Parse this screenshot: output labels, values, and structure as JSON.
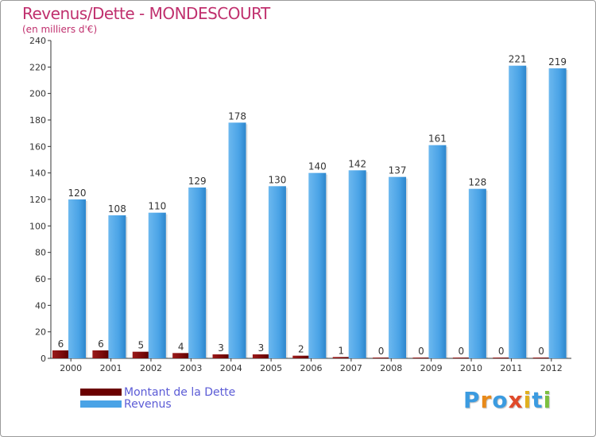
{
  "title": "Revenus/Dette - MONDESCOURT",
  "subtitle": "(en milliers d'€)",
  "chart_data": {
    "type": "bar",
    "categories": [
      "2000",
      "2001",
      "2002",
      "2003",
      "2004",
      "2005",
      "2006",
      "2007",
      "2008",
      "2009",
      "2010",
      "2011",
      "2012"
    ],
    "series": [
      {
        "name": "Montant de la Dette",
        "values": [
          6,
          6,
          5,
          4,
          3,
          3,
          2,
          1,
          0,
          0,
          0,
          0,
          0
        ],
        "color": "#7a0a0a"
      },
      {
        "name": "Revenus",
        "values": [
          120,
          108,
          110,
          129,
          178,
          130,
          140,
          142,
          137,
          161,
          128,
          221,
          219
        ],
        "color": "#4aa3e6"
      }
    ],
    "ylim": [
      0,
      240
    ],
    "yticks": [
      0,
      20,
      40,
      60,
      80,
      100,
      120,
      140,
      160,
      180,
      200,
      220,
      240
    ],
    "xlabel": "",
    "ylabel": "",
    "grid": false,
    "legend": "bottom-left"
  },
  "legend": [
    {
      "label": "Montant de la Dette",
      "color": "#6b0000"
    },
    {
      "label": "Revenus",
      "color": "#4aa3e6"
    }
  ],
  "logo": {
    "letters": [
      "P",
      "r",
      "o",
      "x",
      "i",
      "t",
      "i"
    ],
    "colors": [
      "#3b9be0",
      "#e88a1a",
      "#3b9be0",
      "#e04a2a",
      "#e0b020",
      "#3b9be0",
      "#7cc040"
    ]
  }
}
